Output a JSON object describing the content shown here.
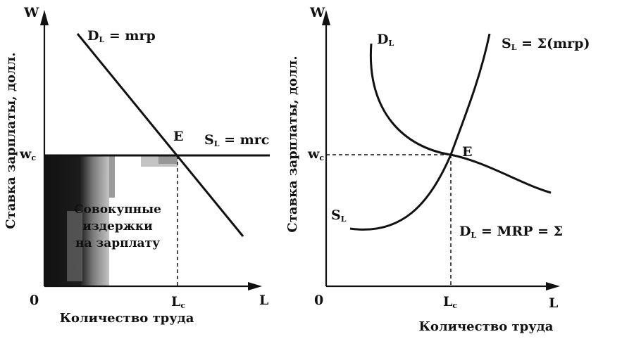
{
  "left_panel": {
    "y_axis_letter": "W",
    "x_axis_letter": "L",
    "origin": "0",
    "y_axis_title": "Ставка зарплаты, долл.",
    "x_axis_title": "Количество труда",
    "wage_tick": {
      "main": "w",
      "sub": "c"
    },
    "labor_tick": {
      "main": "L",
      "sub": "c"
    },
    "demand_label": {
      "main": "D",
      "sub": "L",
      "rest": " = mrp"
    },
    "supply_label": {
      "main": "S",
      "sub": "L",
      "rest": " = mrc"
    },
    "equilibrium_label": "E",
    "area_label": [
      "Совокупные",
      "издержки",
      "на зарплату"
    ]
  },
  "right_panel": {
    "y_axis_letter": "W",
    "x_axis_letter": "L",
    "origin": "0",
    "y_axis_title": "Ставка зарплаты, долл.",
    "x_axis_title": "Количество труда",
    "wage_tick": {
      "main": "w",
      "sub": "c"
    },
    "labor_tick": {
      "main": "L",
      "sub": "c"
    },
    "demand_top_label": {
      "main": "D",
      "sub": "L"
    },
    "supply_top_label": {
      "main": "S",
      "sub": "L",
      "rest": " = Σ(mrp)"
    },
    "supply_bottom_label": {
      "main": "S",
      "sub": "L"
    },
    "demand_bottom_label": {
      "main": "D",
      "sub": "L",
      "rest": " = MRP = Σ"
    },
    "equilibrium_label": "E"
  },
  "colors": {
    "ink": "#111111",
    "shade_dark": "#1a1a1a",
    "shade_mid": "#6f6f6f",
    "shade_light": "#b9b9b9"
  }
}
